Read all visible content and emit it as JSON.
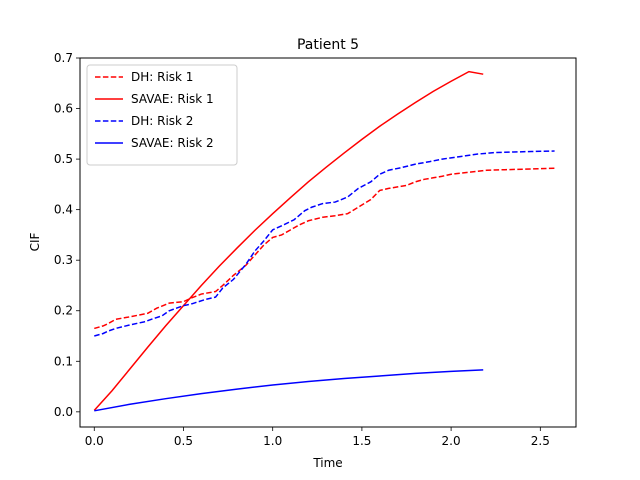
{
  "chart_data": {
    "type": "line",
    "title": "Patient 5",
    "xlabel": "Time",
    "ylabel": "CIF",
    "xlim": [
      -0.08,
      2.7
    ],
    "ylim": [
      -0.03,
      0.7
    ],
    "xticks": [
      "0.0",
      "0.5",
      "1.0",
      "1.5",
      "2.0",
      "2.5"
    ],
    "yticks": [
      "0.0",
      "0.1",
      "0.2",
      "0.3",
      "0.4",
      "0.5",
      "0.6",
      "0.7"
    ],
    "grid": false,
    "legend_position": "top-left",
    "series": [
      {
        "name": "DH: Risk 1",
        "color": "#ff0000",
        "dash": "dashed",
        "x": [
          0.0,
          0.05,
          0.08,
          0.12,
          0.2,
          0.3,
          0.35,
          0.42,
          0.5,
          0.55,
          0.6,
          0.68,
          0.72,
          0.78,
          0.85,
          0.9,
          0.95,
          1.0,
          1.05,
          1.1,
          1.15,
          1.2,
          1.28,
          1.35,
          1.42,
          1.48,
          1.55,
          1.6,
          1.65,
          1.7,
          1.75,
          1.8,
          1.85,
          1.9,
          1.95,
          2.0,
          2.1,
          2.2,
          2.3,
          2.4,
          2.5,
          2.58
        ],
        "y": [
          0.165,
          0.17,
          0.175,
          0.183,
          0.188,
          0.195,
          0.205,
          0.215,
          0.218,
          0.226,
          0.233,
          0.238,
          0.25,
          0.27,
          0.29,
          0.31,
          0.33,
          0.345,
          0.35,
          0.36,
          0.37,
          0.378,
          0.385,
          0.388,
          0.392,
          0.405,
          0.42,
          0.438,
          0.442,
          0.445,
          0.448,
          0.455,
          0.46,
          0.463,
          0.466,
          0.47,
          0.474,
          0.478,
          0.479,
          0.48,
          0.481,
          0.482
        ]
      },
      {
        "name": "SAVAE: Risk 1",
        "color": "#ff0000",
        "dash": "solid",
        "x": [
          0.0,
          0.1,
          0.2,
          0.3,
          0.4,
          0.5,
          0.6,
          0.7,
          0.8,
          0.9,
          1.0,
          1.1,
          1.2,
          1.3,
          1.4,
          1.5,
          1.6,
          1.7,
          1.8,
          1.9,
          2.0,
          2.1,
          2.18
        ],
        "y": [
          0.003,
          0.042,
          0.085,
          0.128,
          0.17,
          0.21,
          0.25,
          0.288,
          0.324,
          0.359,
          0.392,
          0.424,
          0.455,
          0.484,
          0.512,
          0.539,
          0.565,
          0.589,
          0.612,
          0.634,
          0.654,
          0.673,
          0.668
        ]
      },
      {
        "name": "DH: Risk 2",
        "color": "#0000ff",
        "dash": "dashed",
        "x": [
          0.0,
          0.05,
          0.08,
          0.12,
          0.2,
          0.28,
          0.32,
          0.38,
          0.42,
          0.5,
          0.55,
          0.62,
          0.68,
          0.72,
          0.78,
          0.85,
          0.9,
          0.95,
          1.0,
          1.05,
          1.12,
          1.18,
          1.22,
          1.28,
          1.35,
          1.42,
          1.48,
          1.55,
          1.6,
          1.65,
          1.72,
          1.8,
          1.88,
          1.95,
          2.05,
          2.15,
          2.25,
          2.35,
          2.45,
          2.58
        ],
        "y": [
          0.15,
          0.155,
          0.16,
          0.165,
          0.172,
          0.178,
          0.183,
          0.19,
          0.2,
          0.21,
          0.214,
          0.222,
          0.227,
          0.245,
          0.262,
          0.292,
          0.318,
          0.338,
          0.36,
          0.368,
          0.38,
          0.398,
          0.405,
          0.412,
          0.415,
          0.425,
          0.442,
          0.455,
          0.47,
          0.478,
          0.483,
          0.49,
          0.495,
          0.5,
          0.505,
          0.51,
          0.513,
          0.514,
          0.515,
          0.516
        ]
      },
      {
        "name": "SAVAE: Risk 2",
        "color": "#0000ff",
        "dash": "solid",
        "x": [
          0.0,
          0.2,
          0.4,
          0.6,
          0.8,
          1.0,
          1.2,
          1.4,
          1.6,
          1.8,
          2.0,
          2.18
        ],
        "y": [
          0.002,
          0.015,
          0.026,
          0.036,
          0.045,
          0.053,
          0.06,
          0.066,
          0.071,
          0.076,
          0.08,
          0.083
        ]
      }
    ]
  }
}
